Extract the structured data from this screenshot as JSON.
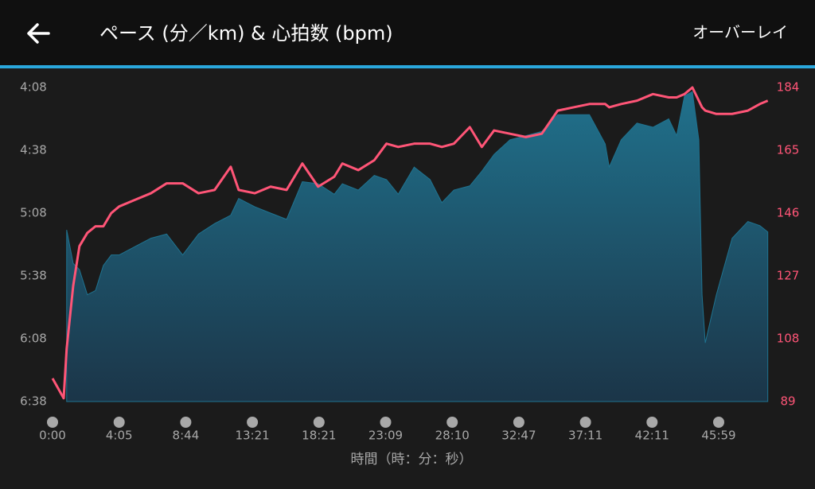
{
  "header": {
    "action": "オーバーレイ"
  },
  "chart_data": {
    "type": "area",
    "title": "ペース (分／km) & 心拍数 (bpm)",
    "x_label": "時間（時：分：秒）",
    "x": [
      0,
      41,
      52,
      76,
      99,
      128,
      158,
      187,
      216,
      245,
      311,
      378,
      444,
      511,
      577,
      644,
      711,
      744,
      812,
      883,
      955,
      1026,
      1097,
      1167,
      1202,
      1271,
      1340,
      1393,
      1446,
      1518,
      1590,
      1643,
      1697,
      1763,
      1813,
      1864,
      1930,
      1995,
      2058,
      2121,
      2184,
      2249,
      2320,
      2338,
      2392,
      2463,
      2534,
      2588,
      2615,
      2642,
      2669,
      2691,
      2702,
      2713,
      2751,
      2805,
      2859,
      2900,
      2927
    ],
    "series": [
      {
        "type": "area",
        "color": "#1f7390",
        "axis": "y",
        "values": [
          null,
          null,
          316,
          332,
          335,
          347,
          345,
          333,
          328,
          328,
          324,
          320,
          318,
          328,
          318,
          313,
          309,
          301,
          305,
          308,
          311,
          293,
          294,
          299,
          294,
          297,
          290,
          292,
          299,
          286,
          292,
          303,
          297,
          295,
          288,
          280,
          273,
          271,
          269,
          261,
          261,
          261,
          275,
          286,
          273,
          265,
          267,
          263,
          271,
          252,
          250,
          273,
          347,
          370,
          347,
          320,
          312,
          314,
          317
        ]
      },
      {
        "type": "line",
        "color": "#ff5577",
        "axis": "y2",
        "values": [
          96,
          90,
          105,
          124,
          136,
          140,
          142,
          142,
          146,
          148,
          150,
          152,
          155,
          155,
          152,
          153,
          160,
          153,
          152,
          154,
          153,
          161,
          154,
          157,
          161,
          159,
          162,
          167,
          166,
          167,
          167,
          166,
          167,
          172,
          166,
          171,
          170,
          169,
          170,
          177,
          178,
          179,
          179,
          178,
          179,
          180,
          182,
          181,
          181,
          182,
          184,
          180,
          178,
          177,
          176,
          176,
          177,
          179,
          180
        ]
      }
    ],
    "xlim": [
      0,
      2932
    ],
    "xticks": [
      {
        "value": 0,
        "label": "0:00"
      },
      {
        "value": 245,
        "label": "4:05"
      },
      {
        "value": 524,
        "label": "8:44"
      },
      {
        "value": 801,
        "label": "13:21"
      },
      {
        "value": 1101,
        "label": "18:21"
      },
      {
        "value": 1389,
        "label": "23:09"
      },
      {
        "value": 1690,
        "label": "28:10"
      },
      {
        "value": 1967,
        "label": "32:47"
      },
      {
        "value": 2231,
        "label": "37:11"
      },
      {
        "value": 2531,
        "label": "42:11"
      },
      {
        "value": 2759,
        "label": "45:59"
      }
    ],
    "ylim": [
      398,
      248
    ],
    "yticks": [
      {
        "value": 248,
        "label": "4:08"
      },
      {
        "value": 278,
        "label": "4:38"
      },
      {
        "value": 308,
        "label": "5:08"
      },
      {
        "value": 338,
        "label": "5:38"
      },
      {
        "value": 368,
        "label": "6:08"
      },
      {
        "value": 398,
        "label": "6:38"
      }
    ],
    "y2lim": [
      89,
      184
    ],
    "y2ticks": [
      89,
      108,
      127,
      146,
      165,
      184
    ],
    "y2_color": "#ff5577"
  }
}
